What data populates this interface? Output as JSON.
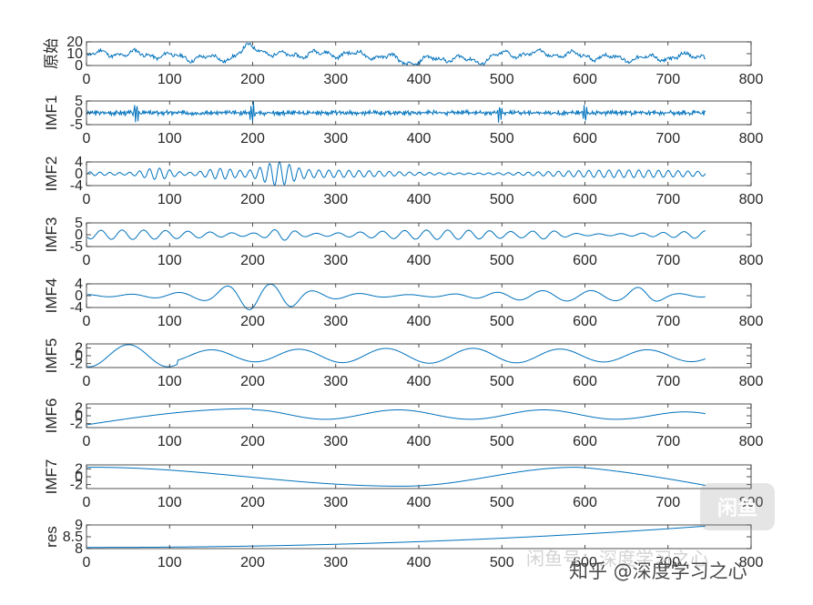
{
  "chart_data": [
    {
      "type": "line",
      "ylabel": "原始",
      "xlim": [
        0,
        800
      ],
      "ylim": [
        0,
        20
      ],
      "yticks": [
        "0",
        "10",
        "20"
      ],
      "xticks": [
        "0",
        "100",
        "200",
        "300",
        "400",
        "500",
        "600",
        "700",
        "800"
      ],
      "n": 745,
      "gen": {
        "kind": "noisy",
        "base": 8,
        "amp": 3.5,
        "seed": 11,
        "bumps": [
          [
            200,
            20,
            9
          ],
          [
            390,
            6,
            -4
          ],
          [
            470,
            4,
            -4
          ]
        ]
      }
    },
    {
      "type": "line",
      "ylabel": "IMF1",
      "xlim": [
        0,
        800
      ],
      "ylim": [
        -5,
        5
      ],
      "yticks": [
        "-5",
        "0",
        "5"
      ],
      "xticks": [
        "0",
        "100",
        "200",
        "300",
        "400",
        "500",
        "600",
        "700",
        "800"
      ],
      "n": 745,
      "gen": {
        "kind": "hf",
        "amp": 1.2,
        "seed": 3,
        "spikes": [
          [
            60,
            4.5
          ],
          [
            200,
            4.6
          ],
          [
            497,
            4.2
          ],
          [
            600,
            3.5
          ]
        ]
      }
    },
    {
      "type": "line",
      "ylabel": "IMF2",
      "xlim": [
        0,
        800
      ],
      "ylim": [
        -4,
        4
      ],
      "yticks": [
        "-4",
        "0",
        "4"
      ],
      "xticks": [
        "0",
        "100",
        "200",
        "300",
        "400",
        "500",
        "600",
        "700",
        "800"
      ],
      "n": 745,
      "gen": {
        "kind": "osc",
        "period": 12,
        "amp": 1.3,
        "seed": 5,
        "bursts": [
          [
            85,
            3
          ],
          [
            230,
            4.2
          ],
          [
            160,
            2.5
          ]
        ]
      }
    },
    {
      "type": "line",
      "ylabel": "IMF3",
      "xlim": [
        0,
        800
      ],
      "ylim": [
        -5,
        5
      ],
      "yticks": [
        "-5",
        "0",
        "5"
      ],
      "xticks": [
        "0",
        "100",
        "200",
        "300",
        "400",
        "500",
        "600",
        "700",
        "800"
      ],
      "n": 745,
      "gen": {
        "kind": "osc",
        "period": 26,
        "amp": 2.0,
        "seed": 7,
        "bursts": [
          [
            235,
            4
          ],
          [
            555,
            3
          ]
        ]
      }
    },
    {
      "type": "line",
      "ylabel": "IMF4",
      "xlim": [
        0,
        800
      ],
      "ylim": [
        -4,
        4
      ],
      "yticks": [
        "-4",
        "0",
        "4"
      ],
      "xticks": [
        "0",
        "100",
        "200",
        "300",
        "400",
        "500",
        "600",
        "700",
        "800"
      ],
      "n": 745,
      "gen": {
        "kind": "osc",
        "period": 55,
        "amp": 1.8,
        "seed": 9,
        "bursts": [
          [
            200,
            4.5
          ],
          [
            240,
            4
          ],
          [
            170,
            3
          ],
          [
            670,
            3.5
          ]
        ]
      }
    },
    {
      "type": "line",
      "ylabel": "IMF5",
      "xlim": [
        0,
        800
      ],
      "ylim": [
        -3,
        3
      ],
      "yticks": [
        "-2",
        "0",
        "2"
      ],
      "xticks": [
        "0",
        "100",
        "200",
        "300",
        "400",
        "500",
        "600",
        "700",
        "800"
      ],
      "n": 745,
      "gen": {
        "kind": "slow5"
      }
    },
    {
      "type": "line",
      "ylabel": "IMF6",
      "xlim": [
        0,
        800
      ],
      "ylim": [
        -3,
        3
      ],
      "yticks": [
        "-2",
        "0",
        "2"
      ],
      "xticks": [
        "0",
        "100",
        "200",
        "300",
        "400",
        "500",
        "600",
        "700",
        "800"
      ],
      "n": 745,
      "gen": {
        "kind": "slow6"
      }
    },
    {
      "type": "line",
      "ylabel": "IMF7",
      "xlim": [
        0,
        800
      ],
      "ylim": [
        -3,
        3
      ],
      "yticks": [
        "-2",
        "0",
        "2"
      ],
      "xticks": [
        "0",
        "100",
        "200",
        "300",
        "400",
        "500",
        "600",
        "700",
        "800"
      ],
      "n": 745,
      "gen": {
        "kind": "slow7"
      }
    },
    {
      "type": "line",
      "ylabel": "res",
      "xlim": [
        0,
        800
      ],
      "ylim": [
        8,
        9
      ],
      "yticks": [
        "8",
        "8.5",
        "9"
      ],
      "xticks": [
        "0",
        "100",
        "200",
        "300",
        "400",
        "500",
        "600",
        "700",
        "800"
      ],
      "n": 745,
      "gen": {
        "kind": "trend"
      }
    }
  ],
  "style": {
    "line_color": "#0072BD",
    "axis_color": "#262626"
  },
  "watermark": {
    "footer": "知乎 @深度学习之心",
    "overlay": "闲鱼号：深度学习之心",
    "badge": "闲鱼"
  }
}
